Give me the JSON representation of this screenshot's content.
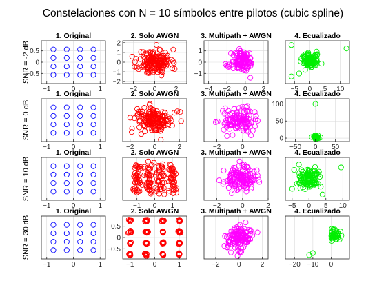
{
  "figure": {
    "title": "Constelaciones con N = 10 símbolos entre pilotos (cubic spline)",
    "colors": {
      "original": "#0000ff",
      "awgn": "#ff0000",
      "multipath": "#ff00ff",
      "ecualizado": "#00ee00",
      "axis": "#262626",
      "grid": "#d9d9d9"
    }
  },
  "chart_data": [
    {
      "type": "scatter",
      "row": 0,
      "col": 0,
      "title": "1. Original",
      "ylabel": "SNR = -2 dB",
      "xlim": [
        -1.2,
        1.2
      ],
      "ylim": [
        -0.95,
        0.95
      ],
      "xticks": [
        -1,
        0,
        1
      ],
      "yticks": [
        -0.5,
        0,
        0.5
      ],
      "series": [
        {
          "color_key": "original",
          "pattern": "grid4",
          "spread": 0
        }
      ]
    },
    {
      "type": "scatter",
      "row": 0,
      "col": 1,
      "title": "2. Solo AWGN",
      "xlim": [
        -3,
        3
      ],
      "ylim": [
        -2.2,
        2.2
      ],
      "xticks": [
        -2,
        0,
        2
      ],
      "yticks": [
        -2,
        -1,
        0,
        1,
        2
      ],
      "series": [
        {
          "color_key": "awgn",
          "pattern": "cloud",
          "n": 160,
          "sx": 0.75,
          "sy": 0.65,
          "seed": 11
        }
      ]
    },
    {
      "type": "scatter",
      "row": 0,
      "col": 2,
      "title": "3. Multipath + AWGN",
      "xlim": [
        -4.5,
        2.5
      ],
      "ylim": [
        -1.9,
        1.9
      ],
      "xticks": [
        -4,
        -2,
        0,
        2
      ],
      "yticks": [
        -1,
        0,
        1
      ],
      "series": [
        {
          "color_key": "multipath",
          "pattern": "cloud",
          "n": 120,
          "cx": -0.3,
          "sx": 0.6,
          "sy": 0.45,
          "seed": 21
        }
      ]
    },
    {
      "type": "scatter",
      "row": 0,
      "col": 3,
      "title": "4. Ecualizado",
      "xlim": [
        -8,
        13
      ],
      "ylim": [
        -8,
        7
      ],
      "xticks": [
        -5,
        0,
        5,
        10
      ],
      "yticks": [],
      "series": [
        {
          "color_key": "ecualizado",
          "pattern": "cloud",
          "n": 110,
          "cx": 0,
          "cy": 0,
          "sx": 1.4,
          "sy": 1.3,
          "seed": 31,
          "outliers": [
            [
              -6,
              5.5
            ],
            [
              12,
              4.3
            ],
            [
              -6,
              -5.5
            ],
            [
              -3.5,
              -4.5
            ]
          ]
        }
      ]
    },
    {
      "type": "scatter",
      "row": 1,
      "col": 0,
      "title": "1. Original",
      "ylabel": "SNR = 0 dB",
      "xlim": [
        -1.2,
        1.2
      ],
      "ylim": [
        -0.95,
        0.95
      ],
      "xticks": [
        -1,
        0,
        1
      ],
      "yticks": [],
      "series": [
        {
          "color_key": "original",
          "pattern": "grid4",
          "spread": 0
        }
      ]
    },
    {
      "type": "scatter",
      "row": 1,
      "col": 1,
      "title": "2. Solo AWGN",
      "xlim": [
        -2.6,
        2.6
      ],
      "ylim": [
        -2.2,
        2.2
      ],
      "xticks": [
        -2,
        0,
        2
      ],
      "yticks": [],
      "series": [
        {
          "color_key": "awgn",
          "pattern": "cloud",
          "n": 160,
          "sx": 0.75,
          "sy": 0.65,
          "seed": 12
        }
      ]
    },
    {
      "type": "scatter",
      "row": 1,
      "col": 2,
      "title": "3. Multipath + AWGN",
      "xlim": [
        -3,
        2
      ],
      "ylim": [
        -1.9,
        1.9
      ],
      "xticks": [
        -2,
        0
      ],
      "yticks": [],
      "series": [
        {
          "color_key": "multipath",
          "pattern": "cloud",
          "n": 130,
          "cx": -0.3,
          "sx": 0.6,
          "sy": 0.5,
          "seed": 22
        }
      ]
    },
    {
      "type": "scatter",
      "row": 1,
      "col": 3,
      "title": "4. Ecualizado",
      "xlim": [
        -75,
        85
      ],
      "ylim": [
        -10,
        115
      ],
      "xticks": [
        -50,
        0,
        50
      ],
      "yticks": [
        0,
        50,
        100
      ],
      "series": [
        {
          "color_key": "ecualizado",
          "pattern": "cloud",
          "n": 40,
          "cx": 2,
          "cy": 3,
          "sx": 4,
          "sy": 2.5,
          "seed": 32,
          "outliers": [
            [
              0,
              100
            ]
          ]
        }
      ]
    },
    {
      "type": "scatter",
      "row": 2,
      "col": 0,
      "title": "1. Original",
      "ylabel": "SNR = 10 dB",
      "xlim": [
        -1.2,
        1.2
      ],
      "ylim": [
        -0.95,
        0.95
      ],
      "xticks": [
        -1,
        0,
        1
      ],
      "yticks": [],
      "series": [
        {
          "color_key": "original",
          "pattern": "grid4",
          "spread": 0
        }
      ]
    },
    {
      "type": "scatter",
      "row": 2,
      "col": 1,
      "title": "2. Solo AWGN",
      "xlim": [
        -1.8,
        1.8
      ],
      "ylim": [
        -1.45,
        1.45
      ],
      "xticks": [
        -1,
        0,
        1
      ],
      "yticks": [],
      "series": [
        {
          "color_key": "awgn",
          "pattern": "grid4",
          "spread": 0.13,
          "n": 10,
          "seed": 13
        }
      ]
    },
    {
      "type": "scatter",
      "row": 2,
      "col": 2,
      "title": "3. Multipath + AWGN",
      "xlim": [
        -3,
        2
      ],
      "ylim": [
        -1.7,
        1.7
      ],
      "xticks": [
        -2,
        0,
        2
      ],
      "yticks": [],
      "series": [
        {
          "color_key": "multipath",
          "pattern": "cloud",
          "n": 130,
          "cx": -0.2,
          "sx": 0.6,
          "sy": 0.45,
          "seed": 23
        }
      ]
    },
    {
      "type": "scatter",
      "row": 2,
      "col": 3,
      "title": "4. Ecualizado",
      "xlim": [
        -7,
        12
      ],
      "ylim": [
        -7.5,
        7.5
      ],
      "xticks": [
        -5,
        0,
        5,
        10
      ],
      "yticks": [],
      "series": [
        {
          "color_key": "ecualizado",
          "pattern": "cloud",
          "n": 100,
          "cx": 0,
          "cy": 0,
          "sx": 1.5,
          "sy": 1.6,
          "seed": 33,
          "outliers": [
            [
              9.5,
              4
            ],
            [
              -3,
              5
            ],
            [
              4,
              -5.5
            ],
            [
              -5,
              -3.5
            ]
          ]
        }
      ]
    },
    {
      "type": "scatter",
      "row": 3,
      "col": 0,
      "title": "1. Original",
      "ylabel": "SNR = 30 dB",
      "xlim": [
        -1.2,
        1.2
      ],
      "ylim": [
        -0.95,
        0.95
      ],
      "xticks": [
        -1,
        0,
        1
      ],
      "yticks": [],
      "series": [
        {
          "color_key": "original",
          "pattern": "grid4",
          "spread": 0
        }
      ]
    },
    {
      "type": "scatter",
      "row": 3,
      "col": 1,
      "title": "2. Solo AWGN",
      "xlim": [
        -1.3,
        1.3
      ],
      "ylim": [
        -0.95,
        0.95
      ],
      "xticks": [
        -1,
        0,
        1
      ],
      "yticks": [
        -0.5,
        0,
        0.5
      ],
      "series": [
        {
          "color_key": "awgn",
          "pattern": "grid4",
          "spread": 0.025,
          "n": 10,
          "seed": 14
        }
      ]
    },
    {
      "type": "scatter",
      "row": 3,
      "col": 2,
      "title": "3. Multipath + AWGN",
      "xlim": [
        -3,
        2.5
      ],
      "ylim": [
        -1.9,
        1.9
      ],
      "xticks": [
        -2,
        0,
        2
      ],
      "yticks": [],
      "series": [
        {
          "color_key": "multipath",
          "pattern": "cloud",
          "n": 130,
          "cx": -0.1,
          "sx": 0.55,
          "sy": 0.55,
          "seed": 24
        }
      ]
    },
    {
      "type": "scatter",
      "row": 3,
      "col": 3,
      "title": "4. Ecualizado",
      "xlim": [
        -25,
        10
      ],
      "ylim": [
        -15,
        7
      ],
      "xticks": [
        -20,
        -10,
        0
      ],
      "yticks": [],
      "series": [
        {
          "color_key": "ecualizado",
          "pattern": "cloud",
          "n": 40,
          "cx": 2,
          "cy": -3,
          "sx": 1.5,
          "sy": 1.8,
          "seed": 34,
          "outliers": [
            [
              -10,
              -12
            ],
            [
              -12,
              -13
            ]
          ]
        }
      ]
    }
  ]
}
